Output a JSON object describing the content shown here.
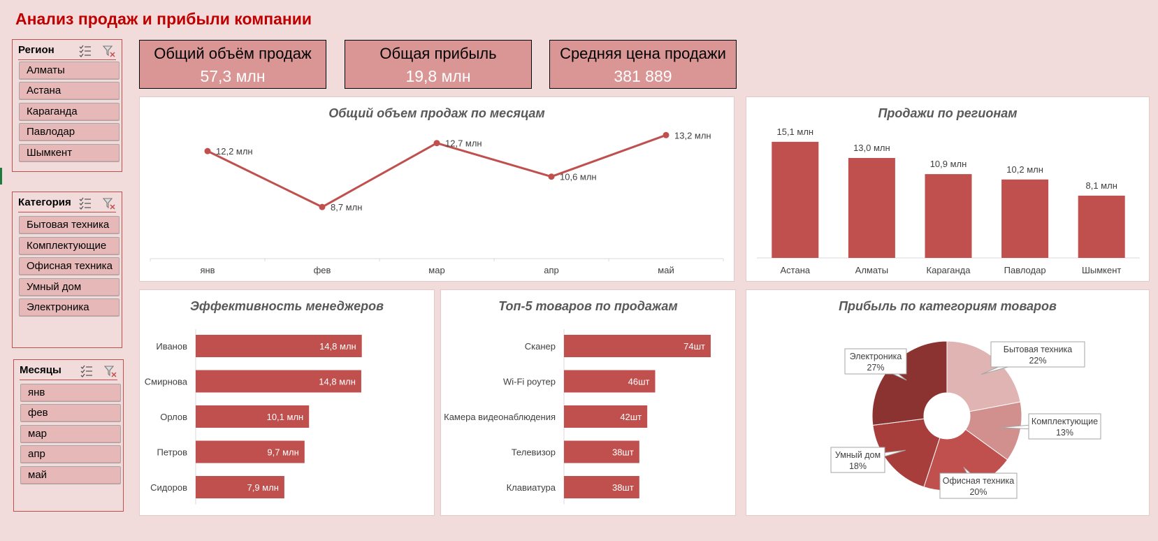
{
  "title": "Анализ продаж и прибыли компании",
  "colors": {
    "accent": "#c0504d",
    "title": "#c00000",
    "kpi_bg": "#da9694",
    "slicer_item": "#e6b8b7",
    "background": "#f2dcdb",
    "pie": [
      "#dfb4b3",
      "#d18f8d",
      "#c0504d",
      "#a83e3b",
      "#8b3331"
    ]
  },
  "slicers": {
    "region": {
      "title": "Регион",
      "items": [
        "Алматы",
        "Астана",
        "Караганда",
        "Павлодар",
        "Шымкент"
      ]
    },
    "category": {
      "title": "Категория",
      "items": [
        "Бытовая техника",
        "Комплектующие",
        "Офисная техника",
        "Умный дом",
        "Электроника"
      ]
    },
    "months": {
      "title": "Месяцы",
      "items": [
        "янв",
        "фев",
        "мар",
        "апр",
        "май"
      ]
    },
    "icons": [
      "multi-select-icon",
      "clear-filter-icon"
    ]
  },
  "kpis": [
    {
      "label": "Общий объём продаж",
      "value": "57,3 млн"
    },
    {
      "label": "Общая прибыль",
      "value": "19,8 млн"
    },
    {
      "label": "Средняя цена продажи",
      "value": "381 889"
    }
  ],
  "chart_data": [
    {
      "type": "line",
      "title": "Общий объем продаж по месяцам",
      "categories": [
        "янв",
        "фев",
        "мар",
        "апр",
        "май"
      ],
      "values": [
        12.2,
        8.7,
        12.7,
        10.6,
        13.2
      ],
      "labels": [
        "12,2 млн",
        "8,7 млн",
        "12,7 млн",
        "10,6 млн",
        "13,2 млн"
      ],
      "ylim": [
        7,
        14
      ],
      "grid": false
    },
    {
      "type": "bar",
      "title": "Продажи по регионам",
      "categories": [
        "Астана",
        "Алматы",
        "Караганда",
        "Павлодар",
        "Шымкент"
      ],
      "values": [
        15.1,
        13.0,
        10.9,
        10.2,
        8.1
      ],
      "labels": [
        "15,1 млн",
        "13,0 млн",
        "10,9 млн",
        "10,2 млн",
        "8,1 млн"
      ],
      "ylim": [
        0,
        16
      ]
    },
    {
      "type": "bar",
      "orientation": "horizontal",
      "title": "Эффективность менеджеров",
      "categories": [
        "Иванов",
        "Смирнова",
        "Орлов",
        "Петров",
        "Сидоров"
      ],
      "values": [
        14.8,
        14.75,
        10.1,
        9.7,
        7.9
      ],
      "labels": [
        "14,8 млн",
        "14,8 млн",
        "10,1 млн",
        "9,7 млн",
        "7,9 млн"
      ],
      "xlim": [
        0,
        16
      ]
    },
    {
      "type": "bar",
      "orientation": "horizontal",
      "title": "Топ-5 товаров по продажам",
      "categories": [
        "Сканер",
        "Wi-Fi роутер",
        "Камера видеонаблюдения",
        "Телевизор",
        "Клавиатура"
      ],
      "values": [
        74,
        46,
        42,
        38,
        38
      ],
      "labels": [
        "74шт",
        "46шт",
        "42шт",
        "38шт",
        "38шт"
      ],
      "xlim": [
        0,
        80
      ]
    },
    {
      "type": "pie",
      "donut": true,
      "title": "Прибыль по категориям товаров",
      "categories": [
        "Бытовая техника",
        "Комплектующие",
        "Офисная техника",
        "Умный дом",
        "Электроника"
      ],
      "values": [
        22,
        13,
        20,
        18,
        27
      ],
      "labels": [
        "22%",
        "13%",
        "20%",
        "18%",
        "27%"
      ]
    }
  ]
}
